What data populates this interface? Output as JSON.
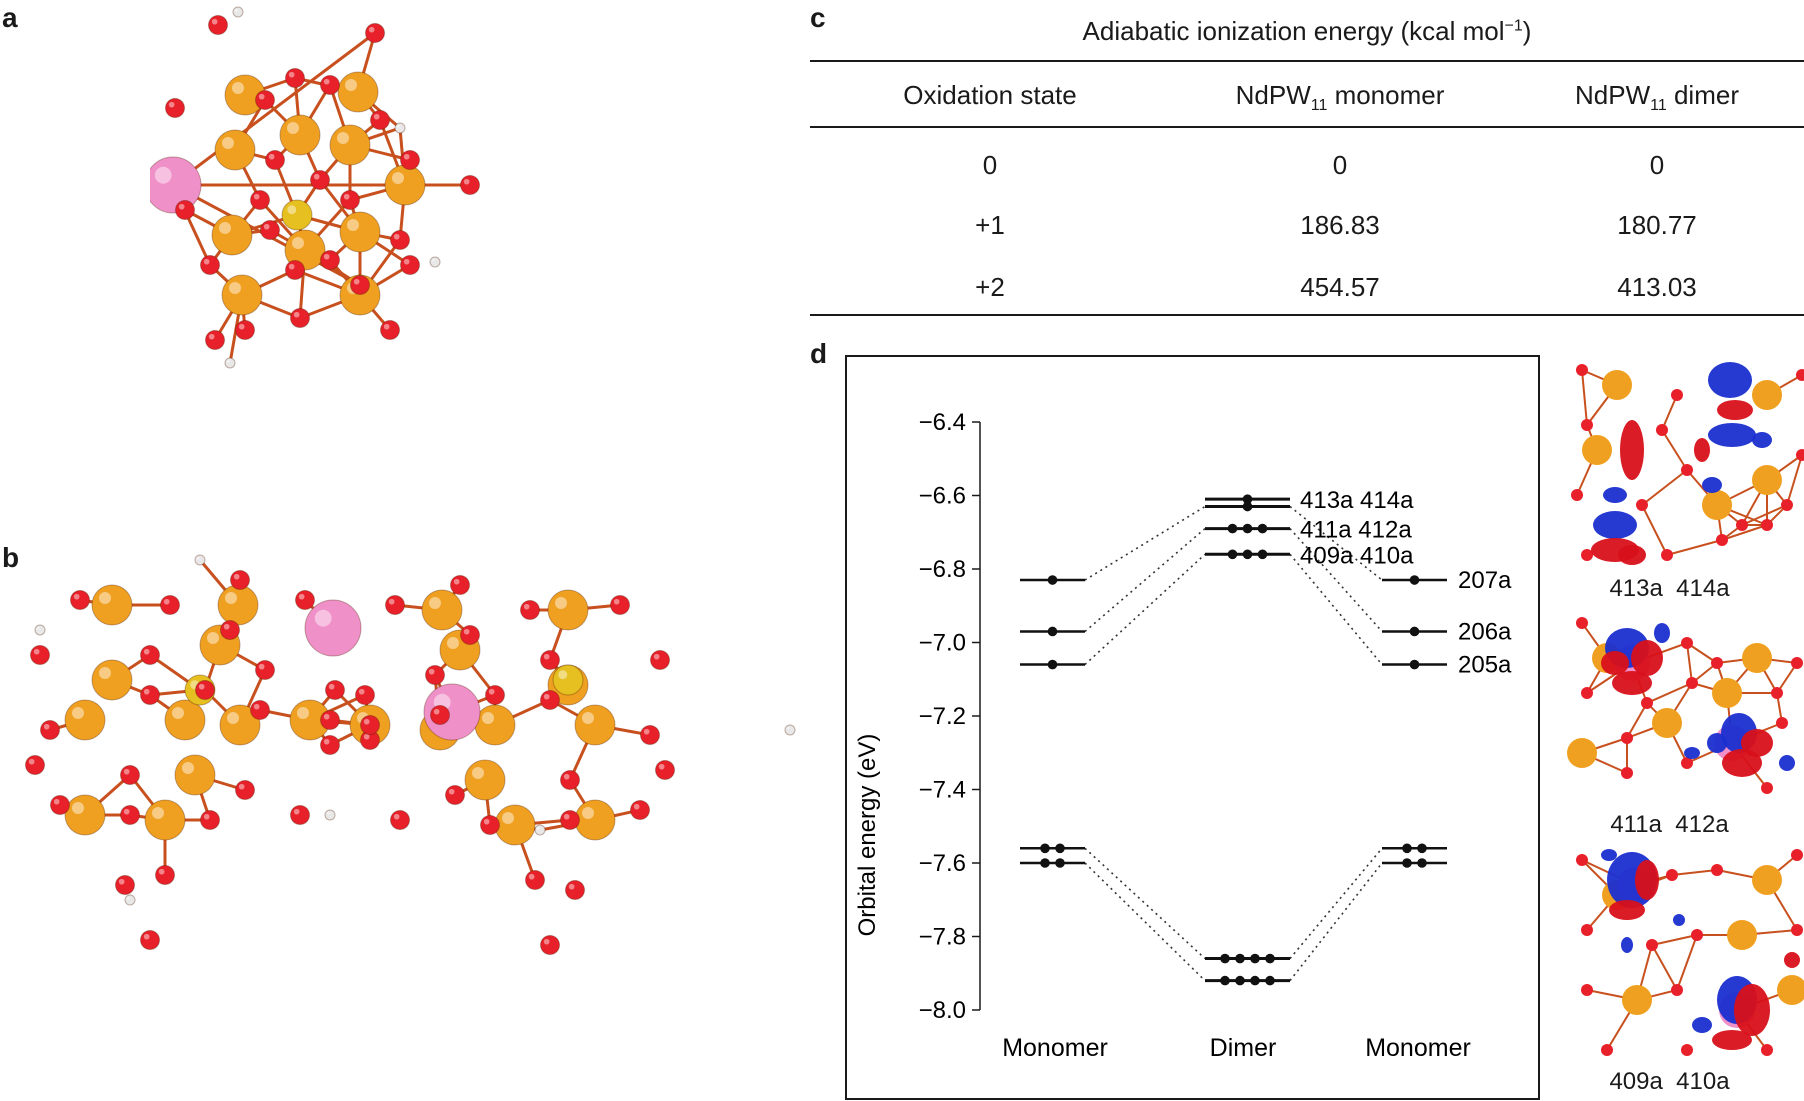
{
  "panels": {
    "a": "a",
    "b": "b",
    "c": "c",
    "d": "d"
  },
  "table": {
    "title": "Adiabatic ionization energy (kcal mol",
    "title_sup": "−1",
    "title_close": ")",
    "headers": {
      "col1": "Oxidation state",
      "col2_pre": "NdPW",
      "col2_sub": "11",
      "col2_post": " monomer",
      "col3_pre": "NdPW",
      "col3_sub": "11",
      "col3_post": " dimer"
    },
    "rows": [
      {
        "state": "0",
        "monomer": "0",
        "dimer": "0"
      },
      {
        "state": "+1",
        "monomer": "186.83",
        "dimer": "180.77"
      },
      {
        "state": "+2",
        "monomer": "454.57",
        "dimer": "413.03"
      }
    ]
  },
  "chart_data": {
    "type": "energy-level diagram",
    "ylabel": "Orbital energy (eV)",
    "ylim": [
      -8.0,
      -6.4
    ],
    "yticks": [
      "−6.4",
      "−6.6",
      "−6.8",
      "−7.0",
      "−7.2",
      "−7.4",
      "−7.6",
      "−7.8",
      "−8.0"
    ],
    "ytick_values": [
      -6.4,
      -6.6,
      -6.8,
      -7.0,
      -7.2,
      -7.4,
      -7.6,
      -7.8,
      -8.0
    ],
    "columns": [
      "Monomer",
      "Dimer",
      "Monomer"
    ],
    "monomer_levels": [
      {
        "energy": -6.83,
        "label": "207a",
        "electrons": 1
      },
      {
        "energy": -6.97,
        "label": "206a",
        "electrons": 1
      },
      {
        "energy": -7.06,
        "label": "205a",
        "electrons": 1
      },
      {
        "energy": -7.56,
        "label": "",
        "electrons": 2
      },
      {
        "energy": -7.6,
        "label": "",
        "electrons": 2
      }
    ],
    "dimer_levels": [
      {
        "energy": -6.61,
        "electrons": 1
      },
      {
        "energy": -6.63,
        "electrons": 1
      },
      {
        "energy": -6.69,
        "electrons": 3
      },
      {
        "energy": -6.76,
        "electrons": 3
      },
      {
        "energy": -7.86,
        "electrons": 4
      },
      {
        "energy": -7.92,
        "electrons": 4
      }
    ],
    "dimer_labels": [
      {
        "energy": -6.61,
        "text": "413a  414a"
      },
      {
        "energy": -6.69,
        "text": "411a  412a"
      },
      {
        "energy": -6.76,
        "text": "409a  410a"
      }
    ]
  },
  "orbital_images": [
    {
      "caption": "413a  414a"
    },
    {
      "caption": "411a  412a"
    },
    {
      "caption": "409a  410a"
    }
  ],
  "colors": {
    "tungsten": "#f0a020",
    "oxygen": "#e8202a",
    "neodymium": "#f090c8",
    "hydrogen": "#e8e8e8",
    "phosphorus": "#e6c020",
    "lobe_blue": "#1a2fd0",
    "lobe_red": "#d8101a"
  }
}
